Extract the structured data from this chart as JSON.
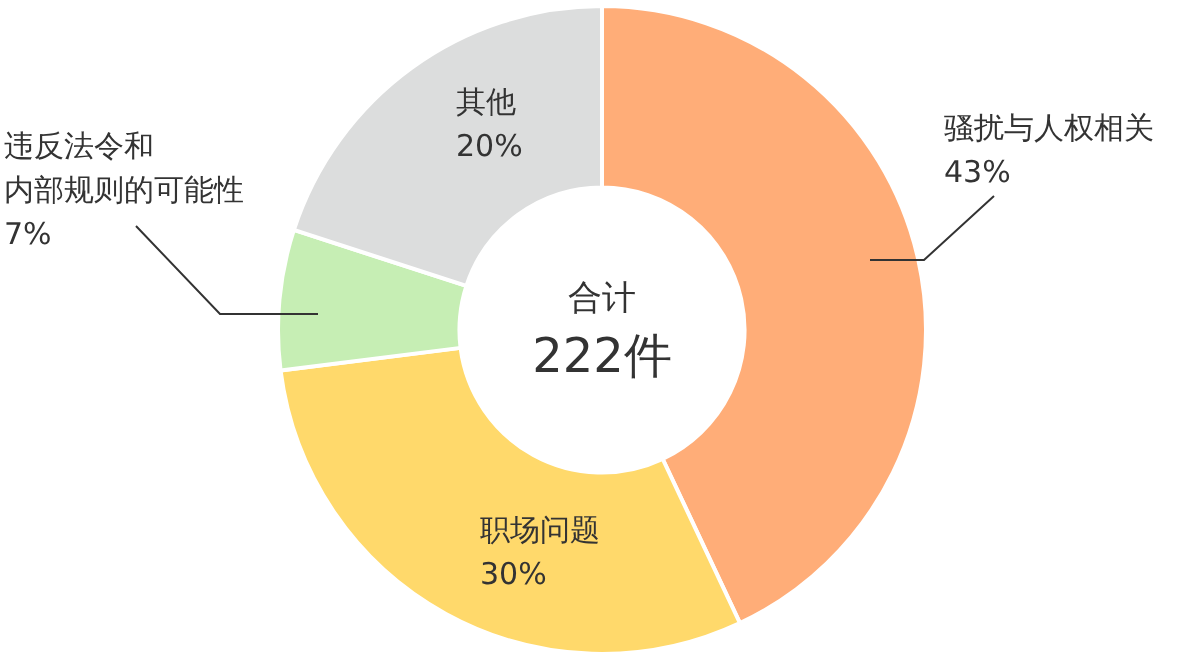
{
  "chart_data": {
    "type": "donut",
    "categories": [
      "骚扰与人权相关",
      "职场问题",
      "违反法令和内部规则的可能性",
      "其他"
    ],
    "values": [
      43,
      30,
      7,
      20
    ],
    "colors": [
      "#ffad78",
      "#ffd96b",
      "#c6eeb4",
      "#dcdddd"
    ],
    "value_labels": [
      "43%",
      "30%",
      "7%",
      "20%"
    ],
    "annotations": [
      "合计",
      "222件"
    ],
    "legend": false
  }
}
